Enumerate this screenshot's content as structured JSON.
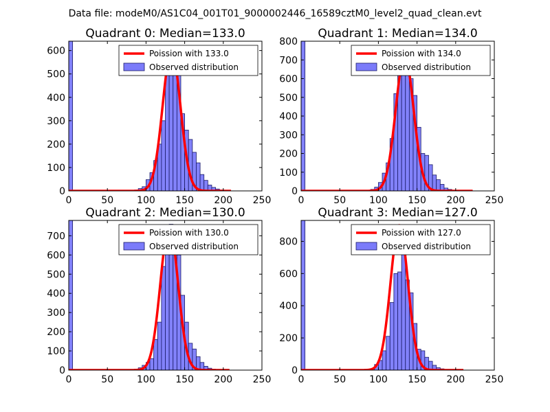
{
  "figure_title": "Data file: modeM0/AS1C04_001T01_9000002446_16589cztM0_level2_quad_clean.evt",
  "colors": {
    "bars": "#7b7bfa",
    "bar_edge": "#1a1a66",
    "poisson": "#ff0000",
    "axis": "#000000"
  },
  "chart_data": [
    {
      "type": "bar",
      "title": "Quadrant 0: Median=133.0",
      "median": 133.0,
      "xlim": [
        0,
        250
      ],
      "ylim": [
        0,
        640
      ],
      "xticks": [
        "0",
        "50",
        "100",
        "150",
        "200",
        "250"
      ],
      "yticks": [
        "0",
        "100",
        "200",
        "300",
        "400",
        "500",
        "600"
      ],
      "legend": [
        "Poission with 133.0",
        "Observed distribution"
      ],
      "bin_width": 5,
      "bin_starts": [
        0,
        80,
        85,
        90,
        95,
        100,
        105,
        110,
        115,
        120,
        125,
        130,
        135,
        140,
        145,
        150,
        155,
        160,
        165,
        170,
        175,
        180,
        185,
        190,
        195,
        200
      ],
      "values": [
        640,
        2,
        4,
        10,
        18,
        48,
        78,
        130,
        200,
        300,
        560,
        620,
        570,
        500,
        330,
        260,
        220,
        165,
        120,
        70,
        45,
        25,
        15,
        8,
        4,
        2
      ],
      "poisson_mean": 133.0,
      "poisson_peak": 600,
      "poisson_range": [
        0,
        210
      ]
    },
    {
      "type": "bar",
      "title": "Quadrant 1: Median=134.0",
      "median": 134.0,
      "xlim": [
        0,
        250
      ],
      "ylim": [
        0,
        800
      ],
      "xticks": [
        "0",
        "50",
        "100",
        "150",
        "200",
        "250"
      ],
      "yticks": [
        "0",
        "100",
        "200",
        "300",
        "400",
        "500",
        "600",
        "700",
        "800"
      ],
      "legend": [
        "Poission with 134.0",
        "Observed distribution"
      ],
      "bin_width": 5,
      "bin_starts": [
        0,
        85,
        90,
        95,
        100,
        105,
        110,
        115,
        120,
        125,
        130,
        135,
        140,
        145,
        150,
        155,
        160,
        165,
        170,
        175,
        180,
        185,
        190,
        195
      ],
      "values": [
        800,
        3,
        8,
        20,
        45,
        95,
        150,
        280,
        520,
        620,
        730,
        700,
        600,
        510,
        340,
        200,
        190,
        140,
        85,
        60,
        35,
        15,
        8,
        3
      ],
      "poisson_mean": 134.0,
      "poisson_peak": 720,
      "poisson_range": [
        0,
        222
      ]
    },
    {
      "type": "bar",
      "title": "Quadrant 2: Median=130.0",
      "median": 130.0,
      "xlim": [
        0,
        250
      ],
      "ylim": [
        0,
        780
      ],
      "xticks": [
        "0",
        "50",
        "100",
        "150",
        "200",
        "250"
      ],
      "yticks": [
        "0",
        "100",
        "200",
        "300",
        "400",
        "500",
        "600",
        "700"
      ],
      "legend": [
        "Poission with 130.0",
        "Observed distribution"
      ],
      "bin_width": 5,
      "bin_starts": [
        0,
        80,
        85,
        90,
        95,
        100,
        105,
        110,
        115,
        120,
        125,
        130,
        135,
        140,
        145,
        150,
        155,
        160,
        165,
        170,
        175,
        180,
        185,
        190
      ],
      "values": [
        780,
        2,
        5,
        12,
        25,
        40,
        60,
        160,
        250,
        540,
        610,
        760,
        680,
        600,
        390,
        250,
        140,
        110,
        70,
        40,
        20,
        10,
        5,
        2
      ],
      "poisson_mean": 130.0,
      "poisson_peak": 750,
      "poisson_range": [
        0,
        208
      ]
    },
    {
      "type": "bar",
      "title": "Quadrant 3: Median=127.0",
      "median": 127.0,
      "xlim": [
        0,
        250
      ],
      "ylim": [
        0,
        930
      ],
      "xticks": [
        "0",
        "50",
        "100",
        "150",
        "200",
        "250"
      ],
      "yticks": [
        "0",
        "200",
        "400",
        "600",
        "800"
      ],
      "legend": [
        "Poission with 127.0",
        "Observed distribution"
      ],
      "bin_width": 5,
      "bin_starts": [
        0,
        85,
        90,
        95,
        100,
        105,
        110,
        115,
        120,
        125,
        130,
        135,
        140,
        145,
        150,
        155,
        160,
        165,
        170,
        175,
        180,
        185
      ],
      "values": [
        930,
        3,
        10,
        35,
        60,
        120,
        210,
        420,
        600,
        610,
        900,
        560,
        480,
        290,
        130,
        120,
        80,
        55,
        30,
        15,
        8,
        3
      ],
      "poisson_mean": 127.0,
      "poisson_peak": 900,
      "poisson_range": [
        0,
        210
      ]
    }
  ]
}
